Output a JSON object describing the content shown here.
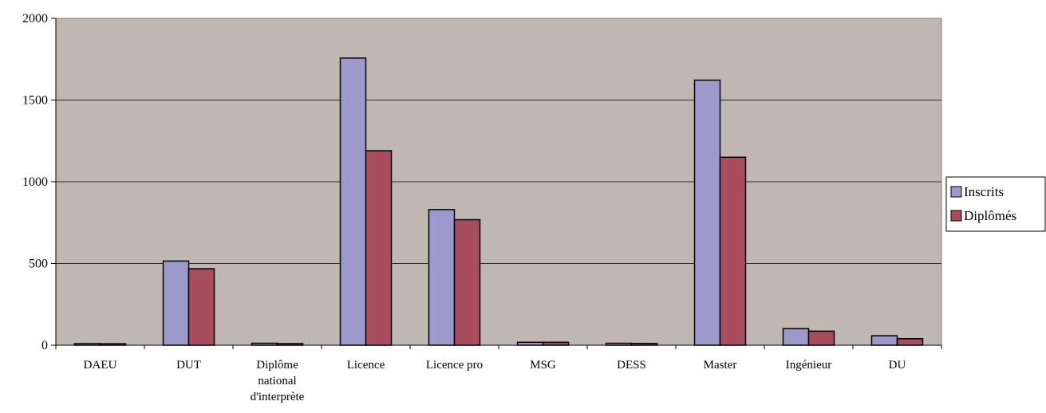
{
  "chart_data": {
    "type": "bar",
    "title": "",
    "xlabel": "",
    "ylabel": "",
    "ylim": [
      0,
      2000
    ],
    "yticks": [
      0,
      500,
      1000,
      1500,
      2000
    ],
    "grid": true,
    "legend_position": "right",
    "plot_background": "#c0b7b3",
    "categories": [
      [
        "DAEU"
      ],
      [
        "DUT"
      ],
      [
        "Diplôme",
        "national",
        "d'interprète"
      ],
      [
        "Licence"
      ],
      [
        "Licence pro"
      ],
      [
        "MSG"
      ],
      [
        "DESS"
      ],
      [
        "Master"
      ],
      [
        "Ingénieur"
      ],
      [
        "DU"
      ]
    ],
    "series": [
      {
        "name": "Inscrits",
        "color": "#9e99cd",
        "values": [
          10,
          515,
          12,
          1757,
          830,
          18,
          12,
          1622,
          102,
          58
        ]
      },
      {
        "name": "Diplômés",
        "color": "#a74d5d",
        "values": [
          9,
          468,
          10,
          1190,
          768,
          18,
          11,
          1150,
          86,
          40
        ]
      }
    ]
  }
}
